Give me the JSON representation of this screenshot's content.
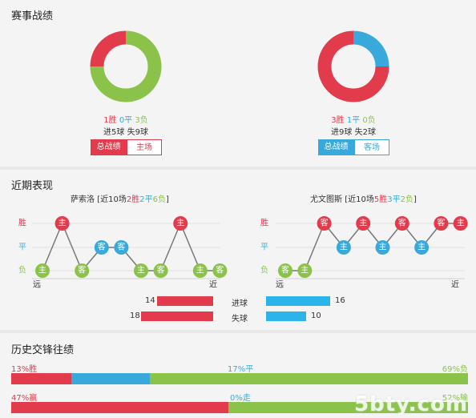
{
  "sections": {
    "record_title": "赛事战绩",
    "recent_title": "近期表现",
    "history_title": "历史交锋往绩"
  },
  "home": {
    "win": "1胜",
    "draw": "0平",
    "loss": "3负",
    "goals_line": "进5球  失9球",
    "btn_total": "总战绩",
    "btn_venue": "主场",
    "pie": [
      1,
      0,
      3
    ]
  },
  "away": {
    "win": "3胜",
    "draw": "1平",
    "loss": "0负",
    "goals_line": "进9球  失2球",
    "btn_total": "总战绩",
    "btn_venue": "客场",
    "pie": [
      3,
      1,
      0
    ]
  },
  "recent": {
    "home_team": "萨索洛",
    "home_summary_prefix": "[近10场",
    "home_win": "2胜",
    "home_draw": "2平",
    "home_loss": "6负",
    "home_suffix": "]",
    "away_team": "尤文图斯",
    "away_summary_prefix": "[近10场",
    "away_win": "5胜",
    "away_draw": "3平",
    "away_loss": "2负",
    "away_suffix": "]",
    "row_labels": [
      "胜",
      "平",
      "负"
    ],
    "far": "远",
    "near": "近",
    "home_results": [
      {
        "r": "L",
        "t": "主"
      },
      {
        "r": "W",
        "t": "主"
      },
      {
        "r": "L",
        "t": "客"
      },
      {
        "r": "D",
        "t": "客"
      },
      {
        "r": "D",
        "t": "客"
      },
      {
        "r": "L",
        "t": "主"
      },
      {
        "r": "L",
        "t": "客"
      },
      {
        "r": "W",
        "t": "主"
      },
      {
        "r": "L",
        "t": "主"
      },
      {
        "r": "L",
        "t": "客"
      }
    ],
    "away_results": [
      {
        "r": "L",
        "t": "客"
      },
      {
        "r": "L",
        "t": "主"
      },
      {
        "r": "W",
        "t": "客"
      },
      {
        "r": "D",
        "t": "主"
      },
      {
        "r": "W",
        "t": "主"
      },
      {
        "r": "D",
        "t": "主"
      },
      {
        "r": "W",
        "t": "客"
      },
      {
        "r": "D",
        "t": "主"
      },
      {
        "r": "W",
        "t": "客"
      },
      {
        "r": "W",
        "t": "主"
      }
    ]
  },
  "goals": {
    "scored_label": "进球",
    "conceded_label": "失球",
    "home_scored": 14,
    "home_conceded": 18,
    "away_scored": 16,
    "away_conceded": 10
  },
  "history": {
    "row1": {
      "win": "13%胜",
      "draw": "17%平",
      "loss": "69%负",
      "values": [
        13,
        17,
        69
      ]
    },
    "row2": {
      "win": "47%赢",
      "draw": "0%走",
      "loss": "52%输",
      "values": [
        47,
        0,
        52
      ]
    }
  },
  "colors": {
    "red": "#e23b4b",
    "blue": "#39a9dc",
    "green": "#8bc34a",
    "gray": "#888888"
  },
  "watermark": "5bty.com"
}
